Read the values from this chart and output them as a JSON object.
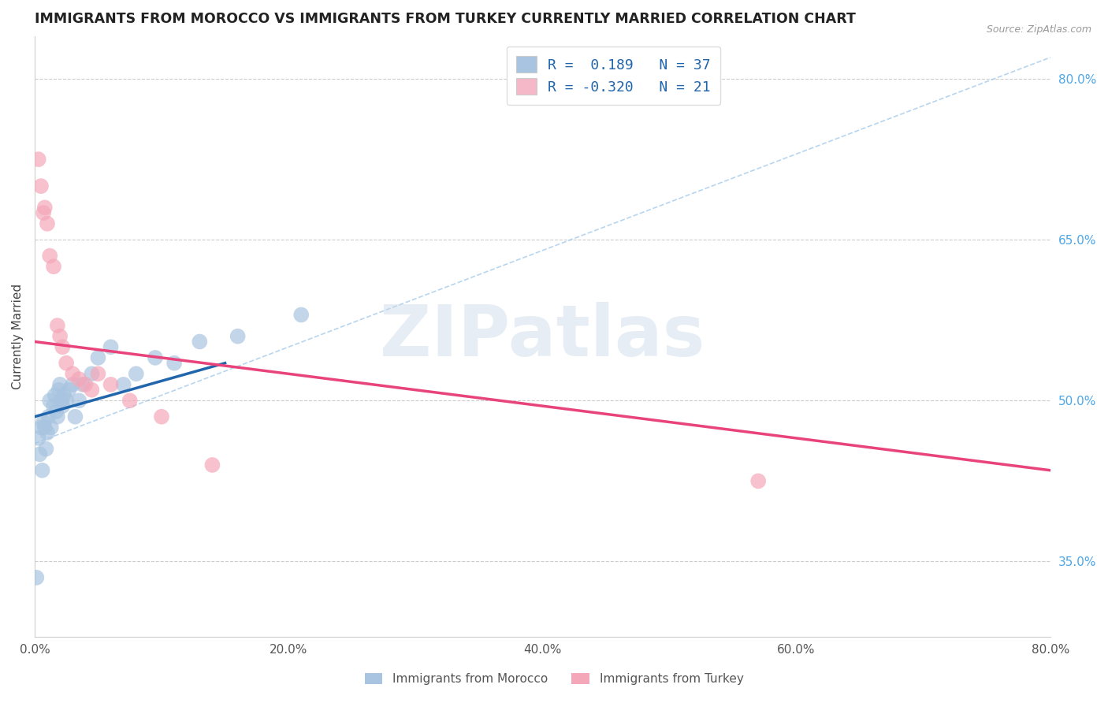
{
  "title": "IMMIGRANTS FROM MOROCCO VS IMMIGRANTS FROM TURKEY CURRENTLY MARRIED CORRELATION CHART",
  "source_text": "Source: ZipAtlas.com",
  "ylabel": "Currently Married",
  "xlim": [
    0.0,
    80.0
  ],
  "ylim": [
    28.0,
    84.0
  ],
  "x_ticks": [
    0.0,
    20.0,
    40.0,
    60.0,
    80.0
  ],
  "y_ticks": [
    35.0,
    50.0,
    65.0,
    80.0
  ],
  "x_tick_labels": [
    "0.0%",
    "20.0%",
    "40.0%",
    "60.0%",
    "80.0%"
  ],
  "y_tick_labels_right": [
    "35.0%",
    "50.0%",
    "65.0%",
    "80.0%"
  ],
  "morocco_R": 0.189,
  "morocco_N": 37,
  "turkey_R": -0.32,
  "turkey_N": 21,
  "morocco_color": "#a8c4e0",
  "turkey_color": "#f4a7b9",
  "morocco_line_color": "#2166ac",
  "turkey_line_color": "#e8437a",
  "watermark": "ZIPatlas",
  "watermark_color_zip": "#c8d8ea",
  "watermark_color_atlas": "#a0b8d0",
  "legend_box_color": "#a8c4e0",
  "legend_box_color2": "#f4b8c8",
  "legend_text_color": "#2166ac",
  "title_color": "#222222",
  "footer_label1": "Immigrants from Morocco",
  "footer_label2": "Immigrants from Turkey",
  "morocco_x": [
    0.3,
    0.4,
    0.5,
    0.6,
    0.7,
    0.8,
    0.9,
    1.0,
    1.1,
    1.2,
    1.3,
    1.5,
    1.6,
    1.7,
    1.8,
    1.9,
    2.0,
    2.1,
    2.2,
    2.3,
    2.5,
    2.7,
    3.0,
    3.2,
    3.5,
    3.8,
    4.5,
    5.0,
    6.0,
    7.0,
    8.0,
    9.5,
    11.0,
    13.0,
    16.0,
    21.0,
    0.15
  ],
  "morocco_y": [
    46.5,
    45.0,
    47.5,
    43.5,
    48.0,
    47.5,
    45.5,
    47.0,
    48.5,
    50.0,
    47.5,
    49.5,
    50.5,
    49.0,
    48.5,
    51.0,
    51.5,
    50.0,
    49.5,
    50.5,
    50.0,
    51.0,
    51.5,
    48.5,
    50.0,
    51.5,
    52.5,
    54.0,
    55.0,
    51.5,
    52.5,
    54.0,
    53.5,
    55.5,
    56.0,
    58.0,
    33.5
  ],
  "turkey_x": [
    0.3,
    0.5,
    0.7,
    0.8,
    1.0,
    1.2,
    1.5,
    1.8,
    2.0,
    2.2,
    2.5,
    3.0,
    3.5,
    4.0,
    4.5,
    5.0,
    6.0,
    7.5,
    10.0,
    14.0,
    57.0
  ],
  "turkey_y": [
    72.5,
    70.0,
    67.5,
    68.0,
    66.5,
    63.5,
    62.5,
    57.0,
    56.0,
    55.0,
    53.5,
    52.5,
    52.0,
    51.5,
    51.0,
    52.5,
    51.5,
    50.0,
    48.5,
    44.0,
    42.5
  ],
  "morocco_line_x": [
    0.0,
    15.0
  ],
  "morocco_line_y": [
    48.5,
    53.5
  ],
  "turkey_line_x": [
    0.0,
    80.0
  ],
  "turkey_line_y": [
    55.5,
    43.5
  ],
  "ref_line_x": [
    0.0,
    80.0
  ],
  "ref_line_y": [
    46.0,
    82.0
  ]
}
